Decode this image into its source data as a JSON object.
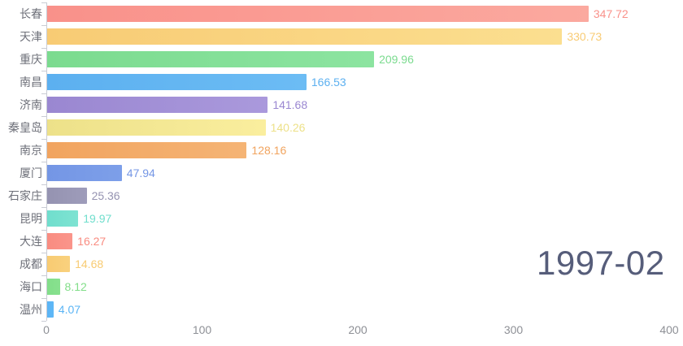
{
  "chart_data": {
    "type": "bar",
    "orientation": "horizontal",
    "title": "1997-02",
    "xlabel": "",
    "ylabel": "",
    "xlim": [
      0,
      400
    ],
    "x_ticks": [
      0,
      100,
      200,
      300,
      400
    ],
    "grid": false,
    "legend": false,
    "categories": [
      "长春",
      "天津",
      "重庆",
      "南昌",
      "济南",
      "秦皇岛",
      "南京",
      "厦门",
      "石家庄",
      "昆明",
      "大连",
      "成都",
      "海口",
      "温州"
    ],
    "values": [
      347.72,
      330.73,
      209.96,
      166.53,
      141.68,
      140.26,
      128.16,
      47.94,
      25.36,
      19.97,
      16.27,
      14.68,
      8.12,
      4.07
    ],
    "bars": [
      {
        "label": "长春",
        "value": 347.72,
        "value_label": "347.72",
        "color": "#f9918a",
        "color_end": "#fba99f"
      },
      {
        "label": "天津",
        "value": 330.73,
        "value_label": "330.73",
        "color": "#f8cb74",
        "color_end": "#fbdf90"
      },
      {
        "label": "重庆",
        "value": 209.96,
        "value_label": "209.96",
        "color": "#7bdb8f",
        "color_end": "#8ce4a0"
      },
      {
        "label": "南昌",
        "value": 166.53,
        "value_label": "166.53",
        "color": "#5cb0f0",
        "color_end": "#6cbcf4"
      },
      {
        "label": "济南",
        "value": 141.68,
        "value_label": "141.68",
        "color": "#9a87d1",
        "color_end": "#aa99dc"
      },
      {
        "label": "秦皇岛",
        "value": 140.26,
        "value_label": "140.26",
        "color": "#ede189",
        "color_end": "#faee9e"
      },
      {
        "label": "南京",
        "value": 128.16,
        "value_label": "128.16",
        "color": "#f1a45f",
        "color_end": "#f5b475"
      },
      {
        "label": "厦门",
        "value": 47.94,
        "value_label": "47.94",
        "color": "#7496e5",
        "color_end": "#7d9fe9"
      },
      {
        "label": "石家庄",
        "value": 25.36,
        "value_label": "25.36",
        "color": "#9593b1",
        "color_end": "#9e9cba"
      },
      {
        "label": "昆明",
        "value": 19.97,
        "value_label": "19.97",
        "color": "#70decd",
        "color_end": "#7ee3d2"
      },
      {
        "label": "大连",
        "value": 16.27,
        "value_label": "16.27",
        "color": "#f98c81",
        "color_end": "#fa958b"
      },
      {
        "label": "成都",
        "value": 14.68,
        "value_label": "14.68",
        "color": "#f8cb72",
        "color_end": "#f9d17e"
      },
      {
        "label": "海口",
        "value": 8.12,
        "value_label": "8.12",
        "color": "#82de89",
        "color_end": "#88e18f"
      },
      {
        "label": "温州",
        "value": 4.07,
        "value_label": "4.07",
        "color": "#5ab4f5",
        "color_end": "#60b8f6"
      }
    ]
  },
  "axis": {
    "line_color": "#c9ccd4",
    "y_label_color": "#6e7079",
    "x_label_color": "#8e9096"
  },
  "timeline_label": "1997-02",
  "timeline_color": "#565d7a"
}
